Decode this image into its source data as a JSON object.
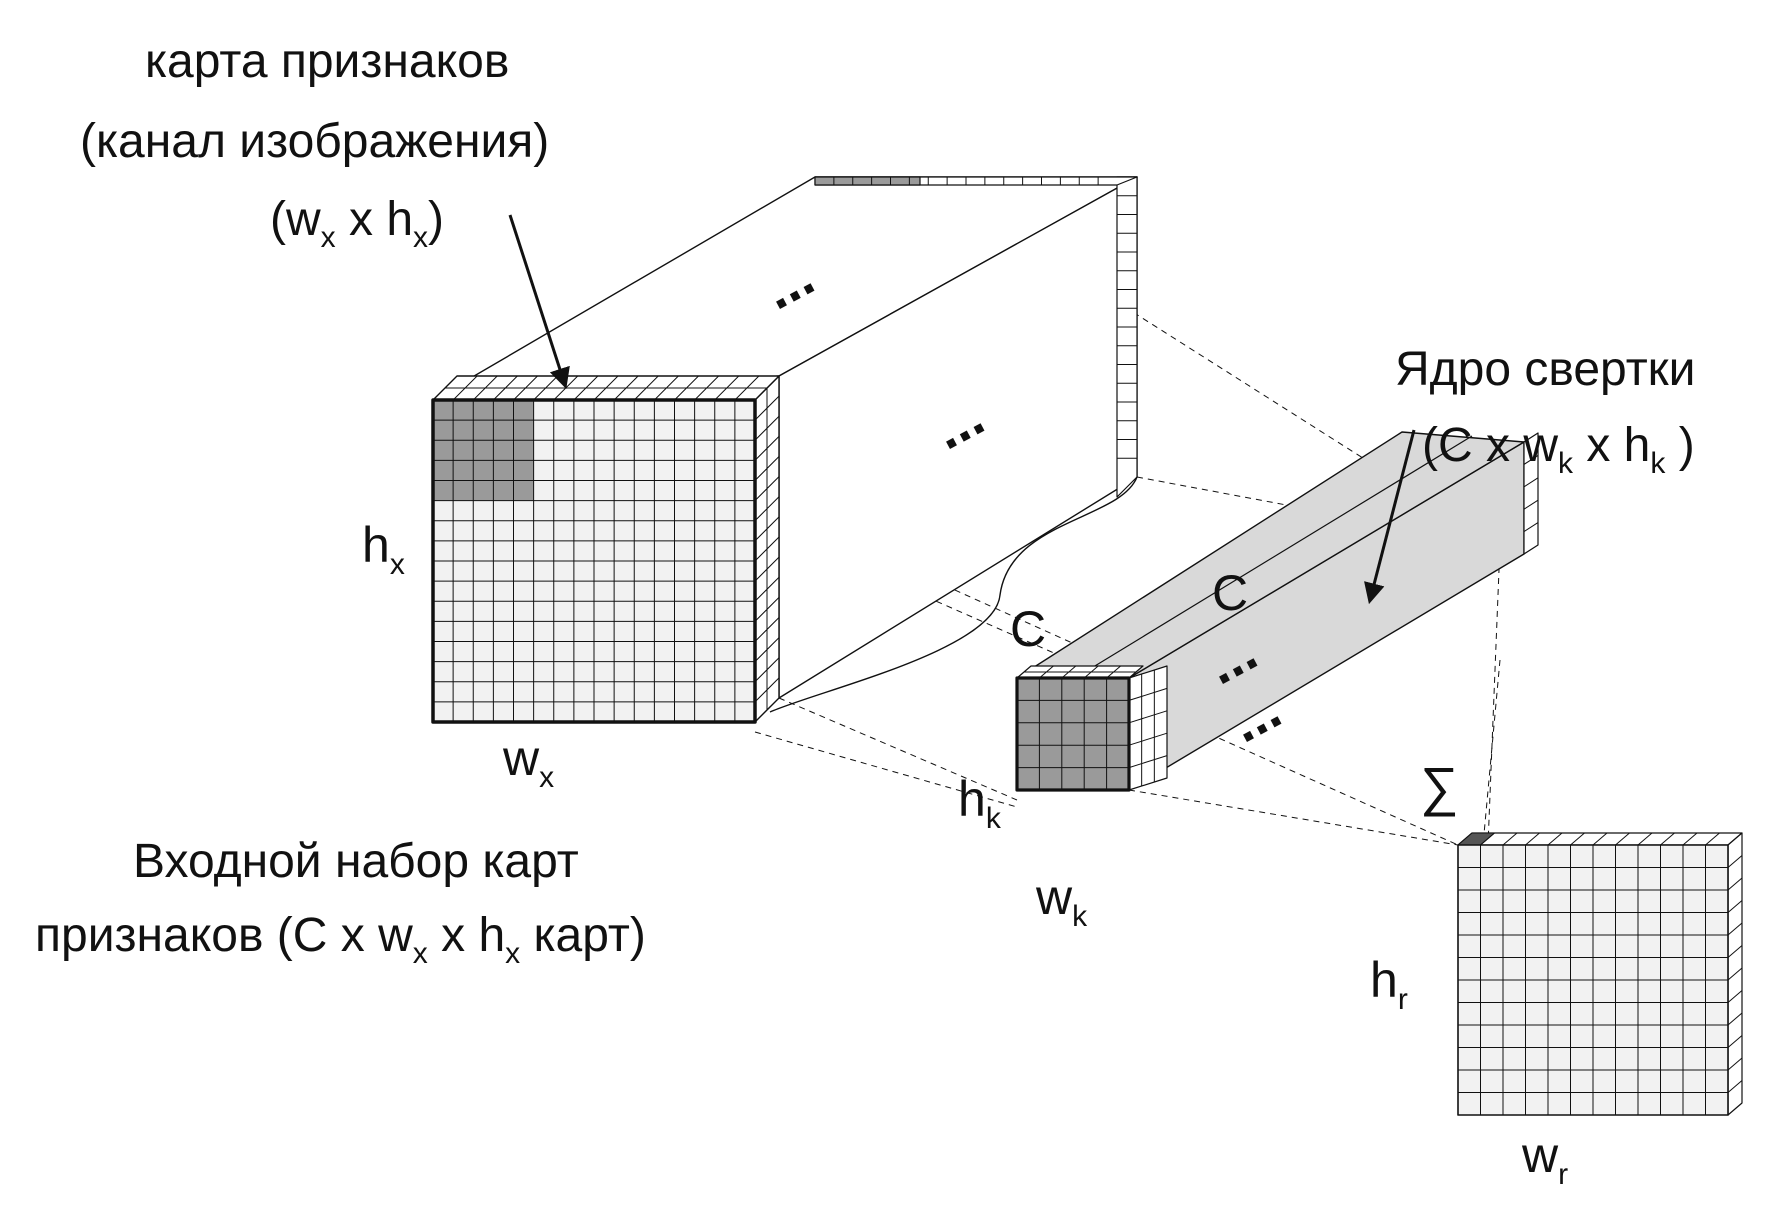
{
  "title": {
    "line1": "карта признаков",
    "line2": "(канал изображения)",
    "line3_open": "(w",
    "line3_sub_x1": "x",
    "line3_mid": " x h",
    "line3_sub_x2": "x",
    "line3_close": ")"
  },
  "input_labels": {
    "h": "h",
    "h_sub": "x",
    "w": "w",
    "w_sub": "x",
    "c_depth": "C",
    "ellipsis_top": "...",
    "ellipsis_side": "..."
  },
  "input_caption": {
    "line1": "Входной набор карт",
    "line2_pre": "признаков (C x w",
    "line2_sub1": "x",
    "line2_mid": " x h",
    "line2_sub2": "x",
    "line2_post": "  карт)"
  },
  "kernel_caption": {
    "line1": "Ядро свертки",
    "line2_pre": "(C x w",
    "line2_sub1": "k",
    "line2_mid": " x h",
    "line2_sub2": "k",
    "line2_post": " )"
  },
  "kernel_labels": {
    "c": "C",
    "h": "h",
    "h_sub": "k",
    "w": "w",
    "w_sub": "k",
    "ellipsis_top": "...",
    "ellipsis_side": "..."
  },
  "result_labels": {
    "sum": "∑",
    "h": "h",
    "h_sub": "r",
    "w": "w",
    "w_sub": "r"
  },
  "grid": {
    "input_cells": 16,
    "input_highlight_cells": 5,
    "kernel_cells": 5,
    "result_cells": 12
  },
  "colors": {
    "line": "#111111",
    "grid_face": "#f2f2f2",
    "highlight": "#9a9a9a",
    "kernel_body": "#d9d9d9",
    "dark_cell": "#555555"
  }
}
